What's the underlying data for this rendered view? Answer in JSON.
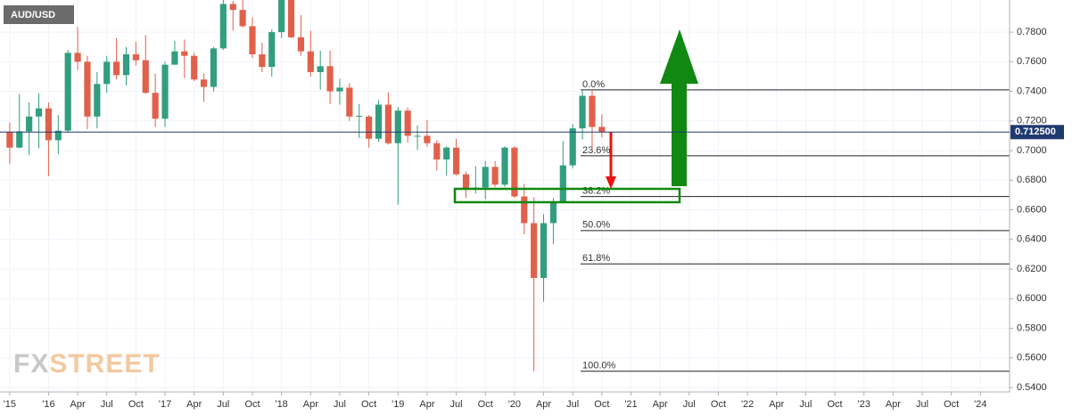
{
  "chart_data": {
    "type": "candlestick",
    "title": "AUD/USD",
    "watermark": [
      "FX",
      "STREET"
    ],
    "x": [
      "2015-09",
      "2015-10",
      "2015-11",
      "2015-12",
      "2016-01",
      "2016-02",
      "2016-03",
      "2016-04",
      "2016-05",
      "2016-06",
      "2016-07",
      "2016-08",
      "2016-09",
      "2016-10",
      "2016-11",
      "2016-12",
      "2017-01",
      "2017-02",
      "2017-03",
      "2017-04",
      "2017-05",
      "2017-06",
      "2017-07",
      "2017-08",
      "2017-09",
      "2017-10",
      "2017-11",
      "2017-12",
      "2018-01",
      "2018-02",
      "2018-03",
      "2018-04",
      "2018-05",
      "2018-06",
      "2018-07",
      "2018-08",
      "2018-09",
      "2018-10",
      "2018-11",
      "2018-12",
      "2019-01",
      "2019-02",
      "2019-03",
      "2019-04",
      "2019-05",
      "2019-06",
      "2019-07",
      "2019-08",
      "2019-09",
      "2019-10",
      "2019-11",
      "2019-12",
      "2020-01",
      "2020-02",
      "2020-03",
      "2020-04",
      "2020-05",
      "2020-06",
      "2020-07",
      "2020-08",
      "2020-09",
      "2020-10"
    ],
    "open": [
      0.7127,
      0.702,
      0.713,
      0.723,
      0.7285,
      0.707,
      0.7135,
      0.766,
      0.76,
      0.723,
      0.745,
      0.76,
      0.751,
      0.765,
      0.761,
      0.739,
      0.7215,
      0.758,
      0.767,
      0.764,
      0.748,
      0.743,
      0.769,
      0.799,
      0.795,
      0.784,
      0.765,
      0.7565,
      0.78,
      0.806,
      0.7765,
      0.767,
      0.753,
      0.757,
      0.74,
      0.7425,
      0.723,
      0.723,
      0.708,
      0.731,
      0.705,
      0.727,
      0.71,
      0.71,
      0.705,
      0.694,
      0.702,
      0.684,
      0.674,
      0.675,
      0.689,
      0.677,
      0.702,
      0.669,
      0.651,
      0.614,
      0.651,
      0.665,
      0.69,
      0.715,
      0.737,
      0.716
    ],
    "high": [
      0.719,
      0.7382,
      0.7325,
      0.7385,
      0.7325,
      0.724,
      0.768,
      0.7835,
      0.764,
      0.753,
      0.764,
      0.776,
      0.77,
      0.7735,
      0.778,
      0.752,
      0.76,
      0.774,
      0.775,
      0.766,
      0.752,
      0.77,
      0.8065,
      0.801,
      0.8125,
      0.79,
      0.773,
      0.782,
      0.8135,
      0.81,
      0.7915,
      0.781,
      0.7675,
      0.7675,
      0.7485,
      0.7455,
      0.7315,
      0.724,
      0.734,
      0.7395,
      0.7295,
      0.729,
      0.717,
      0.7205,
      0.707,
      0.703,
      0.708,
      0.686,
      0.6895,
      0.693,
      0.693,
      0.703,
      0.703,
      0.6775,
      0.6685,
      0.657,
      0.668,
      0.7065,
      0.718,
      0.741,
      0.7415,
      0.7245
    ],
    "low": [
      0.6908,
      0.7017,
      0.697,
      0.7015,
      0.6827,
      0.6975,
      0.712,
      0.7545,
      0.7145,
      0.715,
      0.739,
      0.748,
      0.744,
      0.7575,
      0.7385,
      0.716,
      0.716,
      0.759,
      0.749,
      0.747,
      0.733,
      0.74,
      0.768,
      0.781,
      0.783,
      0.7625,
      0.753,
      0.75,
      0.776,
      0.776,
      0.764,
      0.75,
      0.741,
      0.7315,
      0.731,
      0.72,
      0.7085,
      0.702,
      0.706,
      0.704,
      0.6635,
      0.7055,
      0.7005,
      0.7025,
      0.6865,
      0.683,
      0.683,
      0.668,
      0.671,
      0.667,
      0.6755,
      0.6755,
      0.668,
      0.6435,
      0.551,
      0.598,
      0.637,
      0.6645,
      0.688,
      0.7075,
      0.7,
      0.709
    ],
    "close": [
      0.702,
      0.713,
      0.723,
      0.7285,
      0.707,
      0.7135,
      0.766,
      0.76,
      0.723,
      0.745,
      0.76,
      0.751,
      0.765,
      0.761,
      0.739,
      0.7215,
      0.758,
      0.767,
      0.764,
      0.748,
      0.743,
      0.769,
      0.799,
      0.795,
      0.784,
      0.765,
      0.7565,
      0.78,
      0.806,
      0.7765,
      0.767,
      0.753,
      0.757,
      0.74,
      0.7425,
      0.723,
      0.7235,
      0.708,
      0.731,
      0.705,
      0.727,
      0.71,
      0.71,
      0.705,
      0.694,
      0.702,
      0.684,
      0.674,
      0.675,
      0.689,
      0.677,
      0.702,
      0.669,
      0.651,
      0.614,
      0.651,
      0.665,
      0.69,
      0.715,
      0.737,
      0.716,
      0.7125
    ],
    "up_color": "#329e7f",
    "down_color": "#e0614b",
    "xlim": [
      "2015-08",
      "2024-04"
    ],
    "xticks": [
      {
        "value": "2015-09",
        "label": "'15"
      },
      {
        "value": "2016-01",
        "label": "'16"
      },
      {
        "value": "2016-04",
        "label": "Apr"
      },
      {
        "value": "2016-07",
        "label": "Jul"
      },
      {
        "value": "2016-10",
        "label": "Oct"
      },
      {
        "value": "2017-01",
        "label": "'17"
      },
      {
        "value": "2017-04",
        "label": "Apr"
      },
      {
        "value": "2017-07",
        "label": "Jul"
      },
      {
        "value": "2017-10",
        "label": "Oct"
      },
      {
        "value": "2018-01",
        "label": "'18"
      },
      {
        "value": "2018-04",
        "label": "Apr"
      },
      {
        "value": "2018-07",
        "label": "Jul"
      },
      {
        "value": "2018-10",
        "label": "Oct"
      },
      {
        "value": "2019-01",
        "label": "'19"
      },
      {
        "value": "2019-04",
        "label": "Apr"
      },
      {
        "value": "2019-07",
        "label": "Jul"
      },
      {
        "value": "2019-10",
        "label": "Oct"
      },
      {
        "value": "2020-01",
        "label": "'20"
      },
      {
        "value": "2020-04",
        "label": "Apr"
      },
      {
        "value": "2020-07",
        "label": "Jul"
      },
      {
        "value": "2020-10",
        "label": "Oct"
      },
      {
        "value": "2021-01",
        "label": "'21"
      },
      {
        "value": "2021-04",
        "label": "Apr"
      },
      {
        "value": "2021-07",
        "label": "Jul"
      },
      {
        "value": "2021-10",
        "label": "Oct"
      },
      {
        "value": "2022-01",
        "label": "'22"
      },
      {
        "value": "2022-04",
        "label": "Apr"
      },
      {
        "value": "2022-07",
        "label": "Jul"
      },
      {
        "value": "2022-10",
        "label": "Oct"
      },
      {
        "value": "2023-01",
        "label": "'23"
      },
      {
        "value": "2023-04",
        "label": "Apr"
      },
      {
        "value": "2023-07",
        "label": "Jul"
      },
      {
        "value": "2023-10",
        "label": "Oct"
      },
      {
        "value": "2024-01",
        "label": "'24"
      }
    ],
    "ylim": [
      0.537,
      0.8017
    ],
    "yticks": [
      {
        "value": 0.54,
        "label": "0.5400"
      },
      {
        "value": 0.56,
        "label": "0.5600"
      },
      {
        "value": 0.58,
        "label": "0.5800"
      },
      {
        "value": 0.6,
        "label": "0.6000"
      },
      {
        "value": 0.62,
        "label": "0.6200"
      },
      {
        "value": 0.64,
        "label": "0.6400"
      },
      {
        "value": 0.66,
        "label": "0.6600"
      },
      {
        "value": 0.68,
        "label": "0.6800"
      },
      {
        "value": 0.7,
        "label": "0.7000"
      },
      {
        "value": 0.72,
        "label": "0.7200"
      },
      {
        "value": 0.74,
        "label": "0.7400"
      },
      {
        "value": 0.76,
        "label": "0.7600"
      },
      {
        "value": 0.78,
        "label": "0.7800"
      }
    ],
    "grid": true,
    "last_price": {
      "value": 0.7125,
      "label": "0.712500",
      "color": "#1f3a6e"
    },
    "fib_levels": [
      {
        "label": "0.0%",
        "value": 0.741
      },
      {
        "label": "23.6%",
        "value": 0.6965
      },
      {
        "label": "38.2%",
        "value": 0.669
      },
      {
        "label": "50.0%",
        "value": 0.646
      },
      {
        "label": "61.8%",
        "value": 0.6235
      },
      {
        "label": "100.0%",
        "value": 0.551
      }
    ]
  }
}
